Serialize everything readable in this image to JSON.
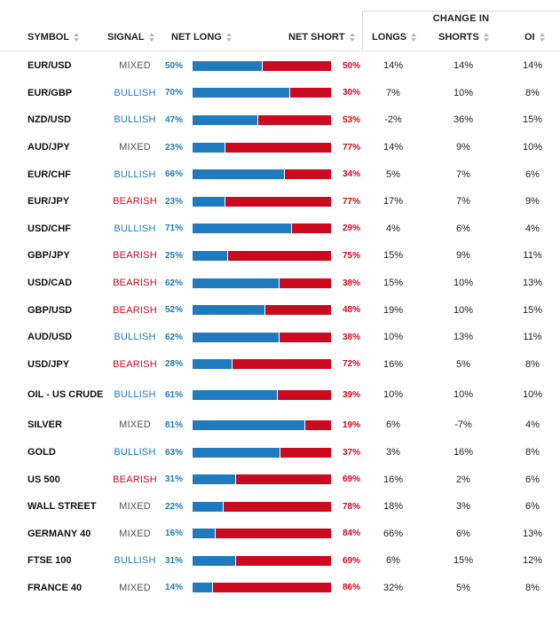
{
  "header": {
    "change_group": "CHANGE IN",
    "symbol": "SYMBOL",
    "signal": "SIGNAL",
    "net_long": "NET LONG",
    "net_short": "NET SHORT",
    "longs": "LONGS",
    "shorts": "SHORTS",
    "oi": "OI"
  },
  "colors": {
    "long": "#1f7bbd",
    "short": "#cc0a1f",
    "mixed": "#555555"
  },
  "rows": [
    {
      "symbol": "EUR/USD",
      "signal": "MIXED",
      "long": "50%",
      "short": "50%",
      "long_value": 50,
      "longs": "14%",
      "shorts": "14%",
      "oi": "14%"
    },
    {
      "symbol": "EUR/GBP",
      "signal": "BULLISH",
      "long": "70%",
      "short": "30%",
      "long_value": 70,
      "longs": "7%",
      "shorts": "10%",
      "oi": "8%"
    },
    {
      "symbol": "NZD/USD",
      "signal": "BULLISH",
      "long": "47%",
      "short": "53%",
      "long_value": 47,
      "longs": "-2%",
      "shorts": "36%",
      "oi": "15%"
    },
    {
      "symbol": "AUD/JPY",
      "signal": "MIXED",
      "long": "23%",
      "short": "77%",
      "long_value": 23,
      "longs": "14%",
      "shorts": "9%",
      "oi": "10%"
    },
    {
      "symbol": "EUR/CHF",
      "signal": "BULLISH",
      "long": "66%",
      "short": "34%",
      "long_value": 66,
      "longs": "5%",
      "shorts": "7%",
      "oi": "6%"
    },
    {
      "symbol": "EUR/JPY",
      "signal": "BEARISH",
      "long": "23%",
      "short": "77%",
      "long_value": 23,
      "longs": "17%",
      "shorts": "7%",
      "oi": "9%"
    },
    {
      "symbol": "USD/CHF",
      "signal": "BULLISH",
      "long": "71%",
      "short": "29%",
      "long_value": 71,
      "longs": "4%",
      "shorts": "6%",
      "oi": "4%"
    },
    {
      "symbol": "GBP/JPY",
      "signal": "BEARISH",
      "long": "25%",
      "short": "75%",
      "long_value": 25,
      "longs": "15%",
      "shorts": "9%",
      "oi": "11%"
    },
    {
      "symbol": "USD/CAD",
      "signal": "BEARISH",
      "long": "62%",
      "short": "38%",
      "long_value": 62,
      "longs": "15%",
      "shorts": "10%",
      "oi": "13%"
    },
    {
      "symbol": "GBP/USD",
      "signal": "BEARISH",
      "long": "52%",
      "short": "48%",
      "long_value": 52,
      "longs": "19%",
      "shorts": "10%",
      "oi": "15%"
    },
    {
      "symbol": "AUD/USD",
      "signal": "BULLISH",
      "long": "62%",
      "short": "38%",
      "long_value": 62,
      "longs": "10%",
      "shorts": "13%",
      "oi": "11%"
    },
    {
      "symbol": "USD/JPY",
      "signal": "BEARISH",
      "long": "28%",
      "short": "72%",
      "long_value": 28,
      "longs": "16%",
      "shorts": "5%",
      "oi": "8%"
    },
    {
      "symbol": "OIL - US CRUDE",
      "signal": "BULLISH",
      "long": "61%",
      "short": "39%",
      "long_value": 61,
      "longs": "10%",
      "shorts": "10%",
      "oi": "10%",
      "tall": true
    },
    {
      "symbol": "SILVER",
      "signal": "MIXED",
      "long": "81%",
      "short": "19%",
      "long_value": 81,
      "longs": "6%",
      "shorts": "-7%",
      "oi": "4%"
    },
    {
      "symbol": "GOLD",
      "signal": "BULLISH",
      "long": "63%",
      "short": "37%",
      "long_value": 63,
      "longs": "3%",
      "shorts": "16%",
      "oi": "8%"
    },
    {
      "symbol": "US 500",
      "signal": "BEARISH",
      "long": "31%",
      "short": "69%",
      "long_value": 31,
      "longs": "16%",
      "shorts": "2%",
      "oi": "6%"
    },
    {
      "symbol": "WALL STREET",
      "signal": "MIXED",
      "long": "22%",
      "short": "78%",
      "long_value": 22,
      "longs": "18%",
      "shorts": "3%",
      "oi": "6%"
    },
    {
      "symbol": "GERMANY 40",
      "signal": "MIXED",
      "long": "16%",
      "short": "84%",
      "long_value": 16,
      "longs": "66%",
      "shorts": "6%",
      "oi": "13%"
    },
    {
      "symbol": "FTSE 100",
      "signal": "BULLISH",
      "long": "31%",
      "short": "69%",
      "long_value": 31,
      "longs": "6%",
      "shorts": "15%",
      "oi": "12%"
    },
    {
      "symbol": "FRANCE 40",
      "signal": "MIXED",
      "long": "14%",
      "short": "86%",
      "long_value": 14,
      "longs": "32%",
      "shorts": "5%",
      "oi": "8%"
    }
  ]
}
